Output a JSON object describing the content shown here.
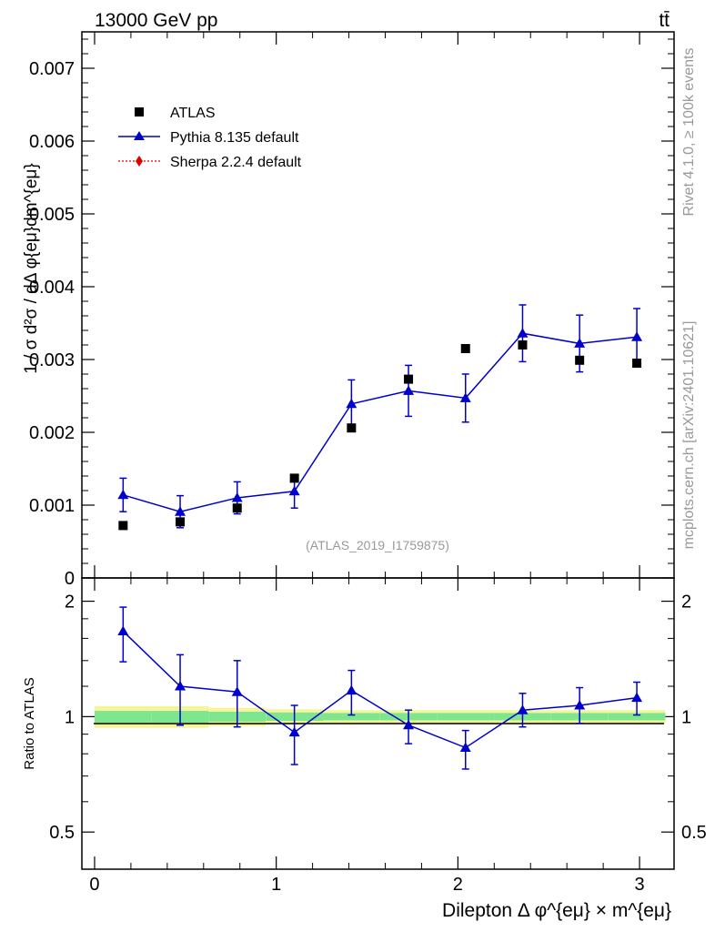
{
  "header": {
    "energy_label": "13000 GeV pp",
    "process_label": "tt̄"
  },
  "side_labels": {
    "rivet": "Rivet 4.1.0, ≥ 100k events",
    "mcplots": "mcplots.cern.ch [arXiv:2401.10621]"
  },
  "watermark": "(ATLAS_2019_I1759875)",
  "main_panel": {
    "ylabel": "1 / σ d²σ / dΔ φ{eμ}dm^{eμ}",
    "ytick_labels": [
      "0",
      "0.001",
      "0.002",
      "0.003",
      "0.004",
      "0.005",
      "0.006",
      "0.007"
    ]
  },
  "ratio_panel": {
    "ylabel": "Ratio to ATLAS",
    "ytick_labels": [
      "0.5",
      "1",
      "2"
    ]
  },
  "xaxis": {
    "label": "Dilepton Δ φ^{eμ} × m^{eμ}",
    "tick_labels": [
      "0",
      "1",
      "2",
      "3"
    ]
  },
  "legend": {
    "atlas": "ATLAS",
    "pythia": "Pythia 8.135 default",
    "sherpa": "Sherpa 2.2.4 default"
  },
  "colors": {
    "data": "#000000",
    "pythia": "#0000cc",
    "sherpa": "#dd0000",
    "band_inner": "#7de68e",
    "band_outer": "#f4f59a"
  },
  "chart_data": {
    "type": "scatter",
    "title": "13000 GeV pp  tt̄",
    "xlabel": "Dilepton Δ φ^{eμ} × m^{eμ}",
    "ylabel": "1 / σ d²σ / dΔ φ{eμ}dm^{eμ}",
    "xlim": [
      -0.07,
      3.19
    ],
    "ylim": [
      0,
      0.0075
    ],
    "x": [
      0.157,
      0.471,
      0.785,
      1.1,
      1.414,
      1.728,
      2.042,
      2.356,
      2.67,
      2.985
    ],
    "series": [
      {
        "name": "ATLAS",
        "values": [
          0.00072,
          0.00077,
          0.00096,
          0.00137,
          0.00206,
          0.00273,
          0.00315,
          0.0032,
          0.00299,
          0.00295
        ]
      },
      {
        "name": "Pythia 8.135 default",
        "values": [
          0.00114,
          0.00091,
          0.0011,
          0.00119,
          0.00239,
          0.00257,
          0.00247,
          0.00336,
          0.00322,
          0.00331
        ],
        "errors": [
          0.00023,
          0.00022,
          0.00022,
          0.00023,
          0.00033,
          0.00035,
          0.00033,
          0.00039,
          0.00039,
          0.00039
        ]
      },
      {
        "name": "Sherpa 2.2.4 default",
        "values": []
      }
    ],
    "ratio": {
      "ylim": [
        0.4,
        2.3
      ],
      "log_scale": true,
      "values": [
        1.67,
        1.2,
        1.16,
        0.91,
        1.17,
        0.95,
        0.83,
        1.04,
        1.07,
        1.12
      ],
      "err_up": [
        0.26,
        0.25,
        0.24,
        0.16,
        0.15,
        0.09,
        0.09,
        0.11,
        0.12,
        0.11
      ],
      "err_down": [
        0.28,
        0.25,
        0.22,
        0.16,
        0.16,
        0.1,
        0.1,
        0.1,
        0.11,
        0.11
      ],
      "band_inner": [
        0.035,
        0.035,
        0.03,
        0.025,
        0.022,
        0.022,
        0.022,
        0.022,
        0.022,
        0.022
      ],
      "band_outer": [
        0.065,
        0.065,
        0.055,
        0.045,
        0.04,
        0.04,
        0.04,
        0.04,
        0.04,
        0.04
      ]
    }
  }
}
